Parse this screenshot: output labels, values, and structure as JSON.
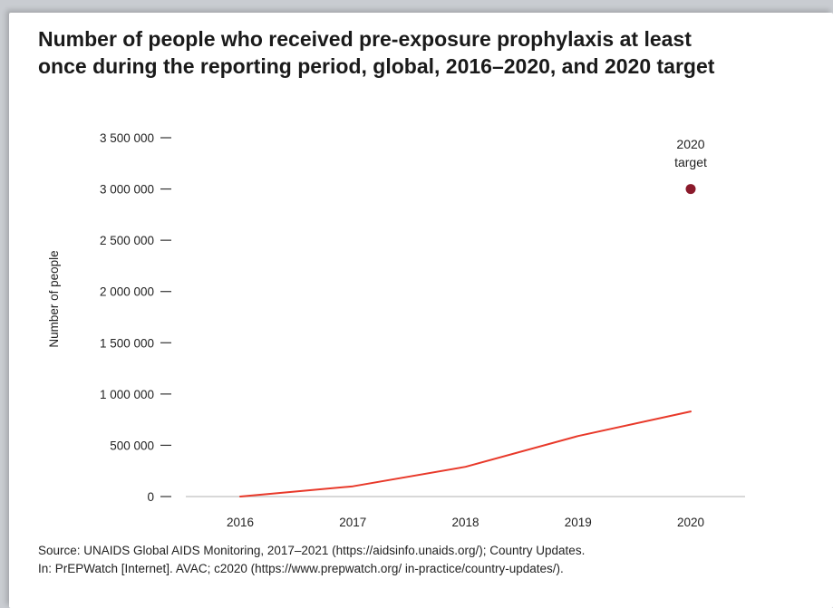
{
  "title_lines": [
    "Number of people who received pre-exposure prophylaxis at least",
    "once during the reporting period, global, 2016–2020, and 2020 target"
  ],
  "source_lines": [
    "Source: UNAIDS Global AIDS Monitoring, 2017–2021 (https://aidsinfo.unaids.org/); Country Updates.",
    "In: PrEPWatch [Internet]. AVAC; c2020 (https://www.prepwatch.org/ in-practice/country-updates/)."
  ],
  "chart_data": {
    "type": "line",
    "x": [
      "2016",
      "2017",
      "2018",
      "2019",
      "2020"
    ],
    "series": [
      {
        "values": [
          0,
          100000,
          290000,
          590000,
          830000
        ],
        "color": "#e8392a"
      }
    ],
    "target": {
      "x": "2020",
      "value": 3000000,
      "label_lines": [
        "2020",
        "target"
      ],
      "color": "#8b1a2b"
    },
    "ylabel": "Number of people",
    "ylim": [
      0,
      3500000
    ],
    "yticks": [
      {
        "value": 0,
        "label": "0"
      },
      {
        "value": 500000,
        "label": "500 000"
      },
      {
        "value": 1000000,
        "label": "1 000 000"
      },
      {
        "value": 1500000,
        "label": "1 500 000"
      },
      {
        "value": 2000000,
        "label": "2 000 000"
      },
      {
        "value": 2500000,
        "label": "2 500 000"
      },
      {
        "value": 3000000,
        "label": "3 000 000"
      },
      {
        "value": 3500000,
        "label": "3 500 000"
      }
    ],
    "grid": false,
    "axis_color": "#cccccc"
  }
}
